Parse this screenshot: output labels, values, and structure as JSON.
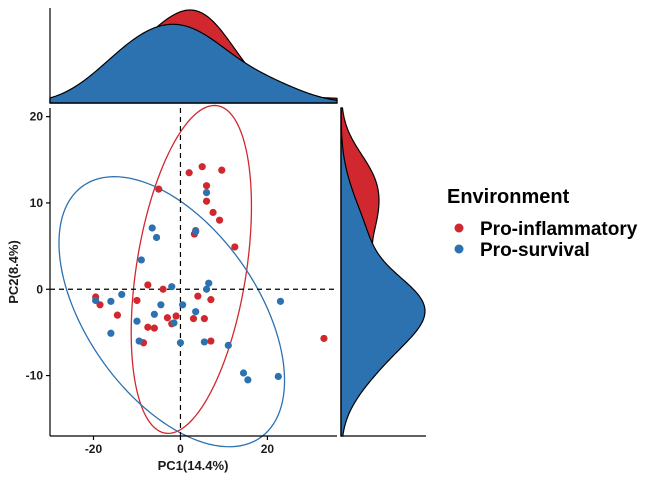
{
  "chart_data": {
    "type": "scatter",
    "xlabel": "PC1(14.4%)",
    "ylabel": "PC2(8.4%)",
    "xlim": [
      -30,
      36
    ],
    "ylim": [
      -17,
      21
    ],
    "x_ticks": [
      -20,
      0,
      20
    ],
    "y_ticks": [
      -10,
      0,
      10,
      20
    ],
    "x_tick_labels": [
      "-20",
      "0",
      "20"
    ],
    "y_tick_labels": [
      "-10",
      "0",
      "10",
      "20"
    ],
    "reference_lines": {
      "x": 0,
      "y": 0,
      "style": "dashed"
    },
    "grid": false,
    "legend": {
      "title": "Environment",
      "placement": "right"
    },
    "series": [
      {
        "name": "Pro-inflammatory",
        "color": "#d1282f",
        "points": [
          [
            -5,
            11.6
          ],
          [
            2,
            13.5
          ],
          [
            5,
            14.2
          ],
          [
            6,
            12.0
          ],
          [
            9.5,
            13.8
          ],
          [
            6,
            10.2
          ],
          [
            7.5,
            8.9
          ],
          [
            9,
            8.0
          ],
          [
            3.5,
            6.8
          ],
          [
            3.2,
            6.4
          ],
          [
            12.5,
            4.9
          ],
          [
            -7.5,
            0.5
          ],
          [
            -4,
            0
          ],
          [
            4,
            -0.8
          ],
          [
            7,
            -1.2
          ],
          [
            -19.5,
            -0.9
          ],
          [
            -18.5,
            -1.8
          ],
          [
            -14.5,
            -3.0
          ],
          [
            -10,
            -1.3
          ],
          [
            -3,
            -3.3
          ],
          [
            -1,
            -3.1
          ],
          [
            3,
            -3.4
          ],
          [
            5.5,
            -3.4
          ],
          [
            -7.5,
            -4.4
          ],
          [
            -6,
            -4.5
          ],
          [
            -2,
            -4.0
          ],
          [
            -8.5,
            -6.2
          ],
          [
            7,
            -6.0
          ],
          [
            33,
            -5.7
          ]
        ]
      },
      {
        "name": "Pro-survival",
        "color": "#2c72b0",
        "points": [
          [
            -6.5,
            7.1
          ],
          [
            -5.5,
            6.0
          ],
          [
            6,
            11.2
          ],
          [
            3.5,
            6.7
          ],
          [
            -9,
            3.4
          ],
          [
            -2,
            0.3
          ],
          [
            6.5,
            0.7
          ],
          [
            6,
            0
          ],
          [
            23,
            -1.4
          ],
          [
            -19.5,
            -1.3
          ],
          [
            -16,
            -1.4
          ],
          [
            -13.5,
            -0.6
          ],
          [
            -4.5,
            -1.8
          ],
          [
            0.5,
            -1.8
          ],
          [
            3.5,
            -2.6
          ],
          [
            -10,
            -3.7
          ],
          [
            -6,
            -2.9
          ],
          [
            -1.5,
            -3.9
          ],
          [
            -16,
            -5.1
          ],
          [
            -9.5,
            -6.0
          ],
          [
            0,
            -6.2
          ],
          [
            5.5,
            -6.1
          ],
          [
            11,
            -6.5
          ],
          [
            14.5,
            -9.7
          ],
          [
            15.5,
            -10.5
          ],
          [
            22.5,
            -10.1
          ]
        ]
      }
    ],
    "ellipses": [
      {
        "series": "Pro-inflammatory",
        "center": [
          2.5,
          2.3
        ],
        "semi_axes": [
          20.2,
          12.0
        ],
        "rotation_deg": 65
      },
      {
        "series": "Pro-survival",
        "center": [
          -2.0,
          -2.6
        ],
        "semi_axes": [
          27.5,
          12.7
        ],
        "rotation_deg": -22
      }
    ]
  }
}
